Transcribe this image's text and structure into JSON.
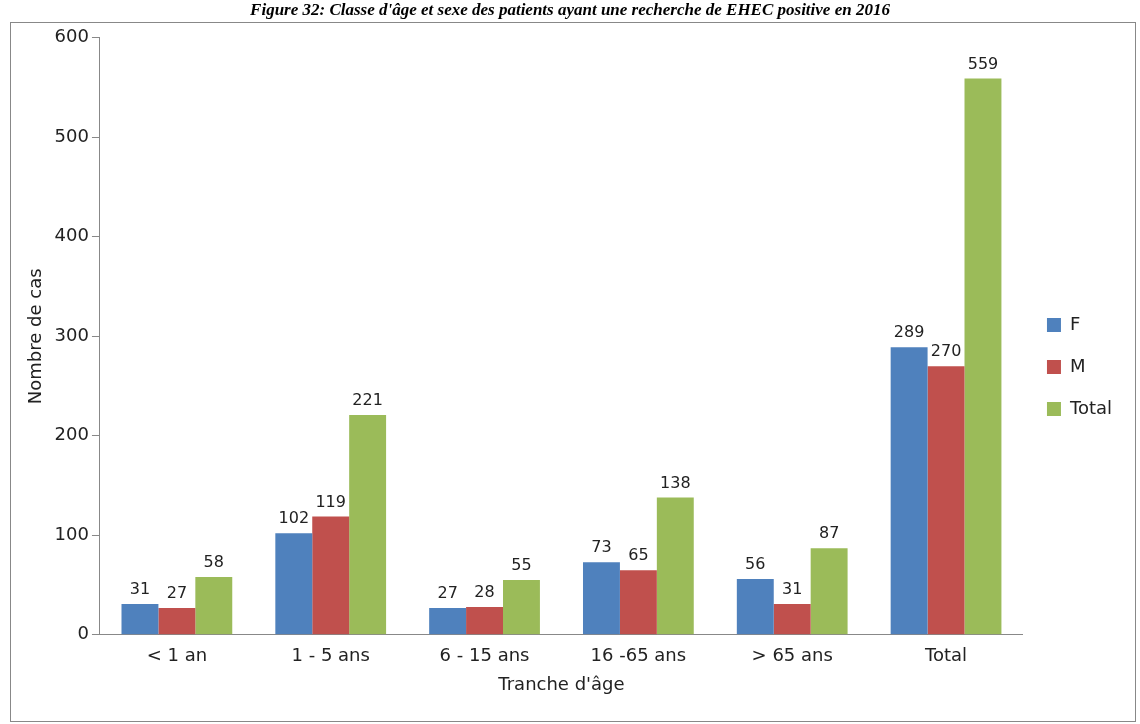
{
  "chart_data": {
    "type": "bar",
    "title": "Figure 32: Classe d'âge et sexe des patients ayant une recherche de EHEC positive en 2016",
    "xlabel": "Tranche d'âge",
    "ylabel": "Nombre de cas",
    "categories": [
      "< 1 an",
      "1 - 5 ans",
      "6 - 15 ans",
      "16 -65 ans",
      "> 65 ans",
      "Total"
    ],
    "series": [
      {
        "name": "F",
        "color": "#4f81bd",
        "values": [
          31,
          102,
          27,
          73,
          56,
          289
        ]
      },
      {
        "name": "M",
        "color": "#c0504d",
        "values": [
          27,
          119,
          28,
          65,
          31,
          270
        ]
      },
      {
        "name": "Total",
        "color": "#9bbb59",
        "values": [
          58,
          221,
          55,
          138,
          87,
          559
        ]
      }
    ],
    "ylim": [
      0,
      600
    ],
    "yticks": [
      0,
      100,
      200,
      300,
      400,
      500,
      600
    ],
    "grid": false,
    "legend": "right",
    "data_labels": true
  }
}
